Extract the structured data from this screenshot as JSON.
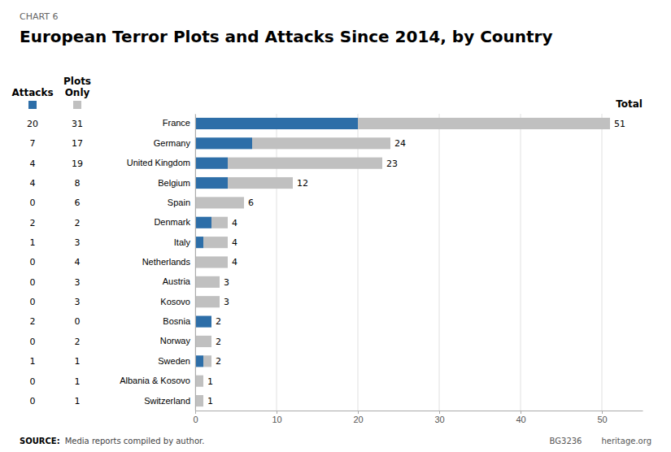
{
  "chart_data": {
    "type": "bar",
    "orientation": "horizontal",
    "stacked": true,
    "title": "European Terror Plots and Attacks Since 2014, by Country",
    "annotations": [
      "CHART 6",
      "Total",
      "SOURCE:",
      "Media reports compiled by author.",
      "BG3236",
      "heritage.org"
    ],
    "categories": [
      "France",
      "Germany",
      "United Kingdom",
      "Belgium",
      "Spain",
      "Denmark",
      "Italy",
      "Netherlands",
      "Austria",
      "Kosovo",
      "Bosnia",
      "Norway",
      "Sweden",
      "Albania & Kosovo",
      "Switzerland"
    ],
    "series": [
      {
        "name": "Attacks",
        "color": "#2D6EA8",
        "values": [
          20,
          7,
          4,
          4,
          0,
          2,
          1,
          0,
          0,
          0,
          2,
          0,
          1,
          0,
          0
        ]
      },
      {
        "name": "Plots Only",
        "color": "#C0C0C0",
        "values": [
          31,
          17,
          19,
          8,
          6,
          2,
          3,
          4,
          3,
          3,
          0,
          2,
          1,
          1,
          1
        ]
      }
    ],
    "totals": [
      51,
      24,
      23,
      12,
      6,
      4,
      4,
      4,
      3,
      3,
      2,
      2,
      2,
      1,
      1
    ],
    "xlim": [
      0,
      55
    ],
    "xticks": [
      0,
      10,
      20,
      30,
      40,
      50
    ],
    "grid": true,
    "data_labels": true
  }
}
